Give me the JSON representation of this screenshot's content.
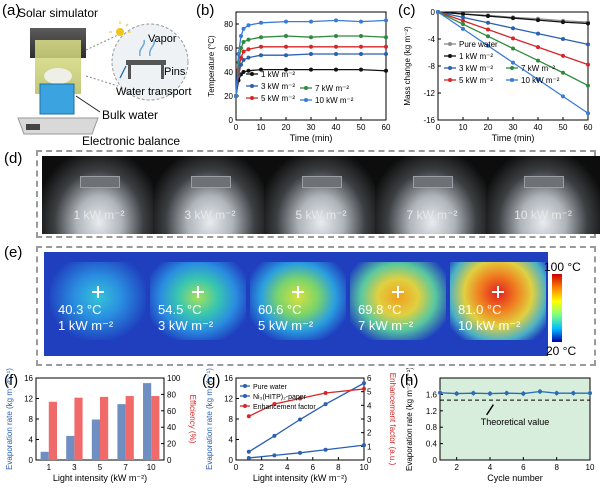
{
  "panels": {
    "a": {
      "label": "(a)",
      "solar": "Solar simulator",
      "vapor": "Vapor",
      "pins": "Pins",
      "water_transport": "Water transport",
      "bulk_water": "Bulk water",
      "balance": "Electronic balance"
    },
    "b": {
      "label": "(b)"
    },
    "c": {
      "label": "(c)"
    },
    "d": {
      "label": "(d)",
      "captions": [
        "1 kW m⁻²",
        "3 kW m⁻²",
        "5 kW m⁻²",
        "7 kW m⁻²",
        "10 kW m⁻²"
      ]
    },
    "e": {
      "label": "(e)",
      "temps": [
        "40.3 °C",
        "54.5 °C",
        "60.6 °C",
        "69.8 °C",
        "81.0 °C"
      ],
      "captions": [
        "1 kW m⁻²",
        "3 kW m⁻²",
        "5 kW m⁻²",
        "7 kW m⁻²",
        "10 kW m⁻²"
      ],
      "scale_max": "100 °C",
      "scale_min": "20 °C"
    },
    "f": {
      "label": "(f)"
    },
    "g": {
      "label": "(g)"
    },
    "h": {
      "label": "(h)",
      "note": "Theoretical value"
    }
  },
  "chart_data": [
    {
      "id": "b",
      "type": "line",
      "xlabel": "Time (min)",
      "ylabel": "Temperature (°C)",
      "xlim": [
        0,
        60
      ],
      "ylim": [
        0,
        90
      ],
      "xticks": [
        0,
        10,
        20,
        30,
        40,
        50,
        60
      ],
      "yticks": [
        0,
        20,
        40,
        60,
        80
      ],
      "series": [
        {
          "name": "1 kW m⁻²",
          "color": "#111111",
          "x": [
            0,
            1,
            2,
            3,
            5,
            10,
            20,
            30,
            40,
            50,
            60
          ],
          "y": [
            20,
            33,
            38,
            40,
            41,
            42,
            42,
            42,
            42,
            42,
            41
          ]
        },
        {
          "name": "3 kW m⁻²",
          "color": "#2b5fb0",
          "x": [
            0,
            1,
            2,
            3,
            5,
            10,
            20,
            30,
            40,
            50,
            60
          ],
          "y": [
            20,
            38,
            46,
            50,
            52,
            54,
            54,
            55,
            55,
            55,
            55
          ]
        },
        {
          "name": "5 kW m⁻²",
          "color": "#d62728",
          "x": [
            0,
            1,
            2,
            3,
            5,
            10,
            20,
            30,
            40,
            50,
            60
          ],
          "y": [
            20,
            42,
            52,
            57,
            59,
            61,
            61,
            61,
            61,
            61,
            61
          ]
        },
        {
          "name": "7 kW m⁻²",
          "color": "#2e8b3d",
          "x": [
            0,
            1,
            2,
            3,
            5,
            10,
            20,
            30,
            40,
            50,
            60
          ],
          "y": [
            20,
            48,
            60,
            65,
            67,
            69,
            70,
            69,
            70,
            70,
            69
          ]
        },
        {
          "name": "10 kW m⁻²",
          "color": "#3a7bd5",
          "x": [
            0,
            1,
            2,
            3,
            5,
            10,
            20,
            30,
            40,
            50,
            60
          ],
          "y": [
            20,
            55,
            70,
            76,
            79,
            81,
            82,
            82,
            83,
            82,
            83
          ]
        }
      ]
    },
    {
      "id": "c",
      "type": "line",
      "xlabel": "Time (min)",
      "ylabel": "Mass change (kg m⁻²)",
      "xlim": [
        0,
        60
      ],
      "ylim": [
        -16,
        0
      ],
      "xticks": [
        0,
        10,
        20,
        30,
        40,
        50,
        60
      ],
      "yticks": [
        0,
        -4,
        -8,
        -12,
        -16
      ],
      "series": [
        {
          "name": "Pure water",
          "color": "#8a8a8a",
          "x": [
            0,
            10,
            20,
            30,
            40,
            50,
            60
          ],
          "y": [
            0,
            -0.3,
            -0.5,
            -0.8,
            -1.0,
            -1.3,
            -1.5
          ]
        },
        {
          "name": "1 kW m⁻²",
          "color": "#111111",
          "x": [
            0,
            10,
            20,
            30,
            40,
            50,
            60
          ],
          "y": [
            0,
            -0.3,
            -0.6,
            -0.9,
            -1.2,
            -1.5,
            -1.7
          ]
        },
        {
          "name": "3 kW m⁻²",
          "color": "#2b5fb0",
          "x": [
            0,
            10,
            20,
            30,
            40,
            50,
            60
          ],
          "y": [
            0,
            -0.8,
            -1.6,
            -2.4,
            -3.2,
            -4.0,
            -4.8
          ]
        },
        {
          "name": "5 kW m⁻²",
          "color": "#d62728",
          "x": [
            0,
            10,
            20,
            30,
            40,
            50,
            60
          ],
          "y": [
            0,
            -1.3,
            -2.6,
            -3.9,
            -5.2,
            -6.5,
            -7.8
          ]
        },
        {
          "name": "7 kW m⁻²",
          "color": "#2e8b3d",
          "x": [
            0,
            10,
            20,
            30,
            40,
            50,
            60
          ],
          "y": [
            0,
            -1.8,
            -3.6,
            -5.4,
            -7.2,
            -9.0,
            -10.9
          ]
        },
        {
          "name": "10 kW m⁻²",
          "color": "#3a7bd5",
          "x": [
            0,
            10,
            20,
            30,
            40,
            50,
            60
          ],
          "y": [
            0,
            -2.5,
            -5.0,
            -7.5,
            -10.0,
            -12.5,
            -15.0
          ]
        }
      ]
    },
    {
      "id": "f",
      "type": "bar",
      "xlabel": "Light intensity (kW m⁻²)",
      "ylabel": "Evaporation rate (kg m⁻²h⁻¹)",
      "ylabel2": "Efficiency (%)",
      "categories": [
        "1",
        "3",
        "5",
        "7",
        "10"
      ],
      "ylim": [
        0,
        16
      ],
      "yticks": [
        0,
        4,
        8,
        12,
        16
      ],
      "ylim2": [
        0,
        100
      ],
      "yticks2": [
        0,
        20,
        40,
        60,
        80,
        100
      ],
      "series": [
        {
          "name": "Evaporation rate",
          "color": "#6f8fc2",
          "values": [
            1.6,
            4.7,
            7.9,
            10.9,
            15.0
          ]
        },
        {
          "name": "Efficiency",
          "color": "#f06a6a",
          "values": [
            71,
            76,
            77,
            78,
            78
          ]
        }
      ]
    },
    {
      "id": "g",
      "type": "line",
      "xlabel": "Light intensity (kW m⁻²)",
      "ylabel": "Evaporation rate (kg m⁻²h⁻¹)",
      "ylabel2": "Enhancement factor (a.u.)",
      "xlim": [
        0,
        10
      ],
      "ylim": [
        0,
        16
      ],
      "xticks": [
        0,
        2,
        4,
        6,
        8,
        10
      ],
      "yticks": [
        0,
        4,
        8,
        12,
        16
      ],
      "ylim2": [
        0,
        6
      ],
      "yticks2": [
        0,
        1,
        2,
        3,
        4,
        5,
        6
      ],
      "series": [
        {
          "name": "Pure water",
          "color": "#2b5fb0",
          "axis": "left",
          "x": [
            1,
            3,
            5,
            7,
            10
          ],
          "y": [
            0.4,
            0.9,
            1.4,
            2.0,
            2.9
          ]
        },
        {
          "name": "Ni₃(HITP)₂-paper",
          "color": "#2b5fb0",
          "axis": "left",
          "x": [
            1,
            3,
            5,
            7,
            10
          ],
          "y": [
            1.6,
            4.7,
            7.9,
            10.9,
            15.0
          ]
        },
        {
          "name": "Enhancement factor",
          "color": "#d62728",
          "axis": "right",
          "x": [
            1,
            3,
            5,
            7,
            10
          ],
          "y": [
            3.2,
            4.1,
            4.5,
            4.9,
            5.2
          ]
        }
      ]
    },
    {
      "id": "h",
      "type": "line",
      "xlabel": "Cycle number",
      "ylabel": "Evaporation rate (kg m⁻² h⁻¹)",
      "xlim": [
        1,
        10
      ],
      "ylim": [
        0,
        2.0
      ],
      "xticks": [
        2,
        4,
        6,
        8,
        10
      ],
      "yticks": [
        0,
        0.4,
        0.8,
        1.2,
        1.6
      ],
      "theoretical": 1.46,
      "series": [
        {
          "name": "Cycle",
          "color": "#2b6cb0",
          "x": [
            1,
            2,
            3,
            4,
            5,
            6,
            7,
            8,
            9,
            10
          ],
          "y": [
            1.64,
            1.62,
            1.63,
            1.62,
            1.63,
            1.62,
            1.67,
            1.63,
            1.63,
            1.63
          ]
        }
      ]
    }
  ]
}
